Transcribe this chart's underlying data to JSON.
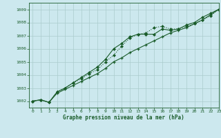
{
  "title": "Graphe pression niveau de la mer (hPa)",
  "bg_color": "#cce8ee",
  "grid_color": "#aacccc",
  "line_color": "#1a5c2a",
  "xlim": [
    -0.5,
    23
  ],
  "ylim": [
    1001.5,
    1009.5
  ],
  "yticks": [
    1002,
    1003,
    1004,
    1005,
    1006,
    1007,
    1008,
    1009
  ],
  "xticks": [
    0,
    1,
    2,
    3,
    4,
    5,
    6,
    7,
    8,
    9,
    10,
    11,
    12,
    13,
    14,
    15,
    16,
    17,
    18,
    19,
    20,
    21,
    22,
    23
  ],
  "line1_x": [
    0,
    1,
    2,
    3,
    4,
    5,
    6,
    7,
    8,
    9,
    10,
    11,
    12,
    13,
    14,
    15,
    16,
    17,
    18,
    19,
    20,
    21,
    22,
    23
  ],
  "line1_y": [
    1002.0,
    1002.1,
    1001.9,
    1002.6,
    1002.9,
    1003.2,
    1003.5,
    1003.8,
    1004.1,
    1004.5,
    1005.0,
    1005.3,
    1005.7,
    1006.0,
    1006.3,
    1006.6,
    1006.9,
    1007.2,
    1007.4,
    1007.6,
    1007.9,
    1008.2,
    1008.6,
    1009.0
  ],
  "line2_x": [
    0,
    1,
    2,
    3,
    4,
    5,
    6,
    7,
    8,
    9,
    10,
    11,
    12,
    13,
    14,
    15,
    16,
    17,
    18,
    19,
    20,
    21,
    22,
    23
  ],
  "line2_y": [
    1002.0,
    1002.1,
    1001.9,
    1002.7,
    1003.0,
    1003.4,
    1003.8,
    1004.2,
    1004.6,
    1005.2,
    1006.0,
    1006.4,
    1006.9,
    1007.1,
    1007.1,
    1007.1,
    1007.5,
    1007.4,
    1007.5,
    1007.8,
    1008.0,
    1008.4,
    1008.7,
    1009.0
  ],
  "line3_x": [
    0,
    1,
    2,
    3,
    4,
    5,
    6,
    7,
    8,
    9,
    10,
    11,
    12,
    13,
    14,
    15,
    16,
    17,
    18,
    19,
    20,
    21,
    22,
    23
  ],
  "line3_y": [
    1002.0,
    1002.1,
    1001.9,
    1002.7,
    1003.0,
    1003.4,
    1003.7,
    1004.1,
    1004.4,
    1005.0,
    1005.5,
    1006.2,
    1006.8,
    1007.1,
    1007.2,
    1007.6,
    1007.7,
    1007.5,
    1007.5,
    1007.7,
    1007.9,
    1008.2,
    1008.5,
    1009.0
  ]
}
